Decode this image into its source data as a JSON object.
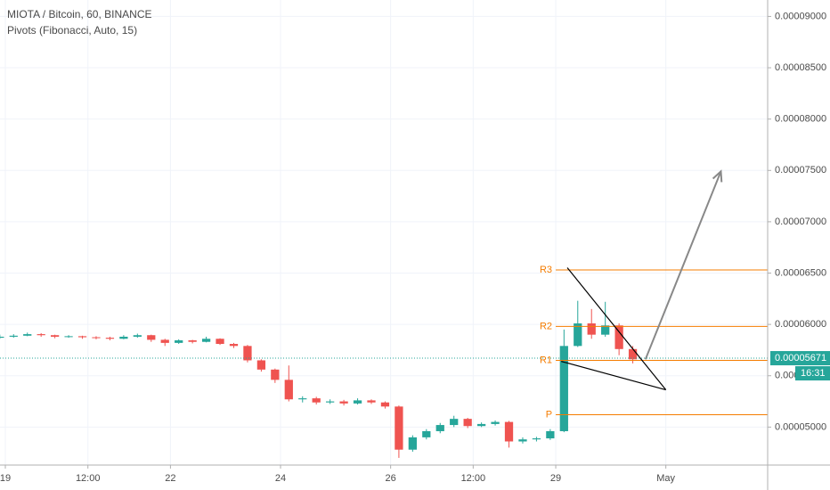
{
  "chart_data": {
    "type": "candlestick",
    "title": "MIOTA / Bitcoin, 60, BINANCE",
    "subtitle": "Pivots (Fibonacci, Auto, 15)",
    "up_color": "#26a69a",
    "down_color": "#ef5350",
    "x": [
      18.9,
      19.15,
      19.4,
      19.65,
      19.9,
      20.15,
      20.4,
      20.65,
      20.9,
      21.15,
      21.4,
      21.65,
      21.9,
      22.15,
      22.4,
      22.65,
      22.9,
      23.15,
      23.4,
      23.65,
      23.9,
      24.15,
      24.4,
      24.65,
      24.9,
      25.15,
      25.4,
      25.65,
      25.9,
      26.15,
      26.4,
      26.65,
      26.9,
      27.15,
      27.4,
      27.65,
      27.9,
      28.15,
      28.4,
      28.65,
      28.9,
      29.15,
      29.4,
      29.65,
      29.9,
      30.15,
      30.4
    ],
    "open": [
      5.87e-05,
      5.88e-05,
      5.89e-05,
      5.905e-05,
      5.895e-05,
      5.88e-05,
      5.885e-05,
      5.875e-05,
      5.87e-05,
      5.86e-05,
      5.88e-05,
      5.895e-05,
      5.85e-05,
      5.82e-05,
      5.845e-05,
      5.83e-05,
      5.86e-05,
      5.81e-05,
      5.79e-05,
      5.65e-05,
      5.56e-05,
      5.46e-05,
      5.27e-05,
      5.28e-05,
      5.24e-05,
      5.25e-05,
      5.23e-05,
      5.26e-05,
      5.24e-05,
      5.2e-05,
      4.78e-05,
      4.9e-05,
      4.96e-05,
      5.02e-05,
      5.08e-05,
      5.01e-05,
      5.03e-05,
      5.05e-05,
      4.86e-05,
      4.88e-05,
      4.89e-05,
      4.96e-05,
      5.79e-05,
      6.01e-05,
      5.9e-05,
      5.99e-05,
      5.76e-05
    ],
    "high": [
      5.9e-05,
      5.905e-05,
      5.92e-05,
      5.915e-05,
      5.9e-05,
      5.895e-05,
      5.89e-05,
      5.885e-05,
      5.88e-05,
      5.895e-05,
      5.91e-05,
      5.9e-05,
      5.86e-05,
      5.855e-05,
      5.85e-05,
      5.88e-05,
      5.865e-05,
      5.82e-05,
      5.8e-05,
      5.66e-05,
      5.57e-05,
      5.6e-05,
      5.3e-05,
      5.295e-05,
      5.27e-05,
      5.265e-05,
      5.28e-05,
      5.27e-05,
      5.25e-05,
      5.21e-05,
      4.92e-05,
      4.98e-05,
      5.04e-05,
      5.11e-05,
      5.09e-05,
      5.045e-05,
      5.065e-05,
      5.06e-05,
      4.9e-05,
      4.905e-05,
      4.98e-05,
      5.95e-05,
      6.23e-05,
      6.15e-05,
      6.22e-05,
      6.01e-05,
      5.79e-05
    ],
    "low": [
      5.86e-05,
      5.87e-05,
      5.885e-05,
      5.88e-05,
      5.865e-05,
      5.87e-05,
      5.86e-05,
      5.855e-05,
      5.845e-05,
      5.855e-05,
      5.87e-05,
      5.83e-05,
      5.79e-05,
      5.81e-05,
      5.815e-05,
      5.825e-05,
      5.8e-05,
      5.77e-05,
      5.63e-05,
      5.54e-05,
      5.43e-05,
      5.25e-05,
      5.24e-05,
      5.22e-05,
      5.225e-05,
      5.21e-05,
      5.22e-05,
      5.225e-05,
      5.18e-05,
      4.7e-05,
      4.76e-05,
      4.88e-05,
      4.94e-05,
      5e-05,
      4.99e-05,
      5e-05,
      5.015e-05,
      4.8e-05,
      4.84e-05,
      4.86e-05,
      4.875e-05,
      4.95e-05,
      5.78e-05,
      5.86e-05,
      5.88e-05,
      5.7e-05,
      5.62e-05
    ],
    "close": [
      5.88e-05,
      5.89e-05,
      5.905e-05,
      5.895e-05,
      5.88e-05,
      5.885e-05,
      5.875e-05,
      5.87e-05,
      5.86e-05,
      5.88e-05,
      5.895e-05,
      5.85e-05,
      5.82e-05,
      5.845e-05,
      5.83e-05,
      5.86e-05,
      5.81e-05,
      5.79e-05,
      5.65e-05,
      5.56e-05,
      5.46e-05,
      5.27e-05,
      5.28e-05,
      5.24e-05,
      5.25e-05,
      5.23e-05,
      5.26e-05,
      5.24e-05,
      5.2e-05,
      4.78e-05,
      4.9e-05,
      4.96e-05,
      5.02e-05,
      5.08e-05,
      5.01e-05,
      5.03e-05,
      5.05e-05,
      4.86e-05,
      4.88e-05,
      4.89e-05,
      4.96e-05,
      5.79e-05,
      6.01e-05,
      5.9e-05,
      5.99e-05,
      5.76e-05,
      5.66e-05
    ],
    "xlim": [
      18.903,
      32.85
    ],
    "xticks": [
      {
        "value": 19,
        "label": "19"
      },
      {
        "value": 20.5,
        "label": "12:00"
      },
      {
        "value": 22,
        "label": "22"
      },
      {
        "value": 24,
        "label": "24"
      },
      {
        "value": 26,
        "label": "26"
      },
      {
        "value": 27.5,
        "label": "12:00"
      },
      {
        "value": 29,
        "label": "29"
      },
      {
        "value": 31,
        "label": "May"
      }
    ],
    "ylim": [
      4.63e-05,
      9.16e-05
    ],
    "yticks": [
      {
        "value": 5e-05,
        "label": "0.00005000"
      },
      {
        "value": 5.5e-05,
        "label": "0.00005500"
      },
      {
        "value": 6e-05,
        "label": "0.00006000"
      },
      {
        "value": 6.5e-05,
        "label": "0.00006500"
      },
      {
        "value": 7e-05,
        "label": "0.00007000"
      },
      {
        "value": 7.5e-05,
        "label": "0.00007500"
      },
      {
        "value": 8e-05,
        "label": "0.00008000"
      },
      {
        "value": 8.5e-05,
        "label": "0.00008500"
      },
      {
        "value": 9e-05,
        "label": "0.00009000"
      }
    ],
    "grid": true,
    "pivot_start": 29,
    "pivot_color": "#f57c00",
    "pivots": [
      {
        "label": "R3",
        "value": 6.53e-05
      },
      {
        "label": "R2",
        "value": 5.98e-05
      },
      {
        "label": "R1",
        "value": 5.65e-05
      },
      {
        "label": "P",
        "value": 5.12e-05
      }
    ],
    "trend_lines": [
      {
        "x": [
          29.21,
          31.0
        ],
        "y": [
          6.552e-05,
          5.363e-05
        ]
      },
      {
        "x": [
          29.1,
          31.0
        ],
        "y": [
          5.64e-05,
          5.363e-05
        ]
      }
    ],
    "arrow": {
      "x": [
        30.63,
        32.0
      ],
      "y": [
        5.66e-05,
        7.49e-05
      ],
      "color": "#888888"
    },
    "last_price": {
      "value": 5.671e-05,
      "label": "0.00005671"
    },
    "countdown": "16:31"
  }
}
